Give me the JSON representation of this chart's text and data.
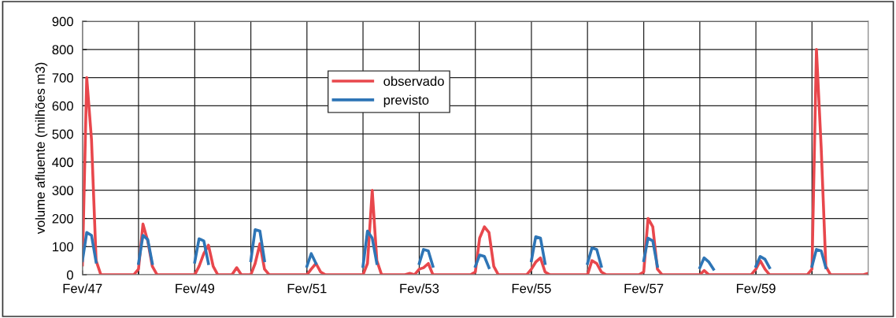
{
  "chart_data": {
    "type": "line",
    "ylabel": "volume afluente (milhões m3)",
    "xlim": [
      "1947-02",
      "1961-02"
    ],
    "xticks": [
      {
        "value": "1947-02",
        "label": "Fev/47"
      },
      {
        "value": "1948-02",
        "label": null
      },
      {
        "value": "1949-02",
        "label": "Fev/49"
      },
      {
        "value": "1950-02",
        "label": null
      },
      {
        "value": "1951-02",
        "label": "Fev/51"
      },
      {
        "value": "1952-02",
        "label": null
      },
      {
        "value": "1953-02",
        "label": "Fev/53"
      },
      {
        "value": "1954-02",
        "label": null
      },
      {
        "value": "1955-02",
        "label": "Fev/55"
      },
      {
        "value": "1956-02",
        "label": null
      },
      {
        "value": "1957-02",
        "label": "Fev/57"
      },
      {
        "value": "1958-02",
        "label": null
      },
      {
        "value": "1959-02",
        "label": "Fev/59"
      },
      {
        "value": "1960-02",
        "label": null
      }
    ],
    "ylim": [
      0,
      900
    ],
    "yticks": [
      0,
      100,
      200,
      300,
      400,
      500,
      600,
      700,
      800,
      900
    ],
    "grid": true,
    "legend": "top center",
    "marker": "none",
    "line_style": "solid",
    "series": [
      {
        "name": "observado",
        "color": "#e8474c",
        "x": [
          "1947-02",
          "1947-03",
          "1947-04",
          "1947-05",
          "1947-06",
          "1948-01",
          "1948-02",
          "1948-03",
          "1948-04",
          "1948-05",
          "1948-06",
          "1949-02",
          "1949-03",
          "1949-04",
          "1949-05",
          "1949-06",
          "1949-07",
          "1949-10",
          "1949-11",
          "1949-12",
          "1950-02",
          "1950-03",
          "1950-04",
          "1950-05",
          "1950-06",
          "1951-02",
          "1951-03",
          "1951-04",
          "1951-05",
          "1951-06",
          "1952-02",
          "1952-03",
          "1952-04",
          "1952-05",
          "1952-06",
          "1952-11",
          "1952-12",
          "1953-01",
          "1953-02",
          "1953-03",
          "1953-04",
          "1953-05",
          "1954-01",
          "1954-02",
          "1954-03",
          "1954-04",
          "1954-05",
          "1954-06",
          "1954-07",
          "1955-01",
          "1955-02",
          "1955-03",
          "1955-04",
          "1955-05",
          "1955-06",
          "1956-02",
          "1956-03",
          "1956-04",
          "1956-05",
          "1956-06",
          "1957-01",
          "1957-02",
          "1957-03",
          "1957-04",
          "1957-05",
          "1957-06",
          "1958-02",
          "1958-03",
          "1958-04",
          "1959-01",
          "1959-02",
          "1959-03",
          "1959-04",
          "1959-05",
          "1960-01",
          "1960-02",
          "1960-03",
          "1960-04",
          "1960-05",
          "1960-06",
          "1961-01",
          "1961-02"
        ],
        "values": [
          35,
          700,
          480,
          50,
          0,
          0,
          20,
          180,
          120,
          30,
          0,
          0,
          30,
          75,
          105,
          30,
          0,
          0,
          25,
          0,
          0,
          40,
          110,
          20,
          0,
          0,
          20,
          40,
          10,
          0,
          0,
          40,
          300,
          50,
          0,
          0,
          5,
          0,
          20,
          25,
          40,
          0,
          0,
          10,
          130,
          170,
          150,
          30,
          0,
          0,
          20,
          45,
          60,
          10,
          0,
          0,
          50,
          40,
          10,
          0,
          0,
          10,
          200,
          170,
          20,
          0,
          0,
          15,
          0,
          0,
          20,
          50,
          20,
          0,
          0,
          20,
          800,
          450,
          30,
          0,
          0,
          5
        ]
      },
      {
        "name": "previsto",
        "color": "#2e75b6",
        "x": [
          "1947-02",
          "1947-03",
          "1947-04",
          "1947-05",
          "1947-09",
          "1948-02",
          "1948-03",
          "1948-04",
          "1948-05",
          "1948-09",
          "1949-02",
          "1949-03",
          "1949-04",
          "1949-05",
          "1949-09",
          "1950-02",
          "1950-03",
          "1950-04",
          "1950-05",
          "1950-09",
          "1951-02",
          "1951-03",
          "1951-04",
          "1951-09",
          "1952-02",
          "1952-03",
          "1952-04",
          "1952-05",
          "1952-09",
          "1953-02",
          "1953-03",
          "1953-04",
          "1953-05",
          "1953-09",
          "1954-02",
          "1954-03",
          "1954-04",
          "1954-05",
          "1954-09",
          "1955-02",
          "1955-03",
          "1955-04",
          "1955-05",
          "1955-09",
          "1956-02",
          "1956-03",
          "1956-04",
          "1956-05",
          "1956-09",
          "1957-02",
          "1957-03",
          "1957-04",
          "1957-05",
          "1957-09",
          "1958-02",
          "1958-03",
          "1958-04",
          "1958-05",
          "1958-09",
          "1959-02",
          "1959-03",
          "1959-04",
          "1959-05",
          "1959-09",
          "1960-02",
          "1960-03",
          "1960-04",
          "1960-05"
        ],
        "values": [
          50,
          150,
          140,
          45,
          null,
          40,
          140,
          125,
          40,
          null,
          45,
          128,
          120,
          40,
          null,
          50,
          160,
          155,
          50,
          null,
          30,
          75,
          40,
          null,
          30,
          155,
          130,
          40,
          null,
          40,
          90,
          85,
          30,
          null,
          30,
          70,
          65,
          25,
          null,
          50,
          135,
          130,
          40,
          null,
          40,
          95,
          90,
          30,
          null,
          50,
          130,
          120,
          30,
          null,
          25,
          60,
          45,
          20,
          null,
          30,
          65,
          55,
          25,
          null,
          30,
          90,
          85,
          25
        ]
      }
    ]
  }
}
